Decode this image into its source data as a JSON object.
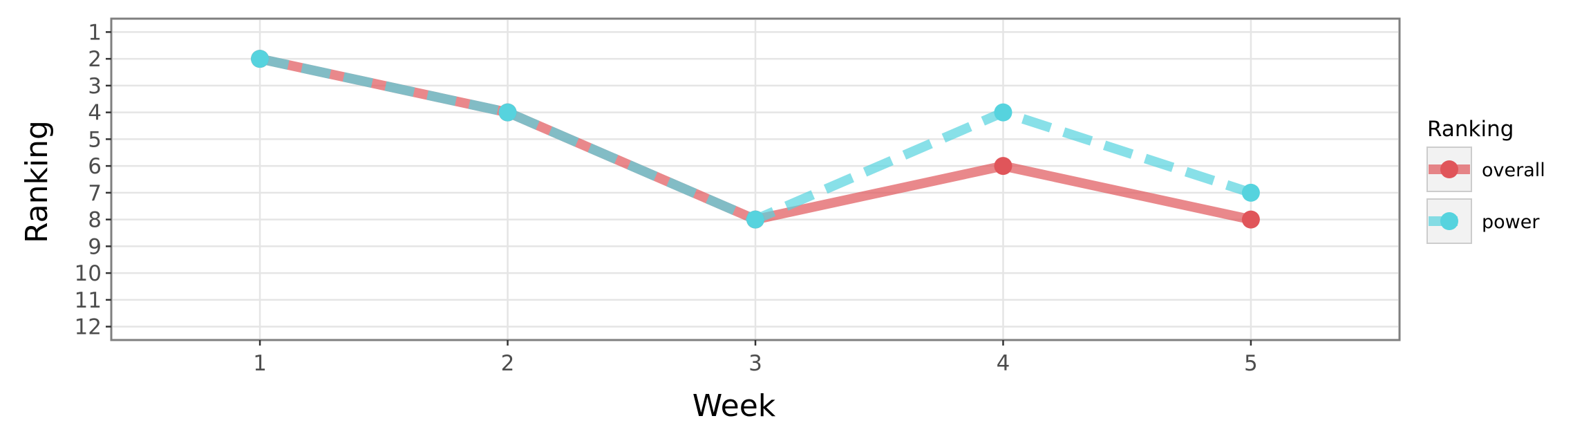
{
  "chart_data": {
    "type": "line",
    "xlabel": "Week",
    "ylabel": "Ranking",
    "x": [
      1,
      2,
      3,
      4,
      5
    ],
    "xlim": [
      0.4,
      5.6
    ],
    "ylim": [
      12.5,
      0.5
    ],
    "y_reversed": true,
    "xticks": [
      "1",
      "2",
      "3",
      "4",
      "5"
    ],
    "yticks": [
      "1",
      "2",
      "3",
      "4",
      "5",
      "6",
      "7",
      "8",
      "9",
      "10",
      "11",
      "12"
    ],
    "grid": true,
    "legend": {
      "title": "Ranking",
      "placement": "right"
    },
    "series": [
      {
        "name": "overall",
        "values": [
          2,
          4,
          8,
          6,
          8
        ],
        "color": "#e0555a",
        "line": "solid"
      },
      {
        "name": "power",
        "values": [
          2,
          4,
          8,
          4,
          7
        ],
        "color": "#56d3de",
        "line": "dashed"
      }
    ]
  }
}
